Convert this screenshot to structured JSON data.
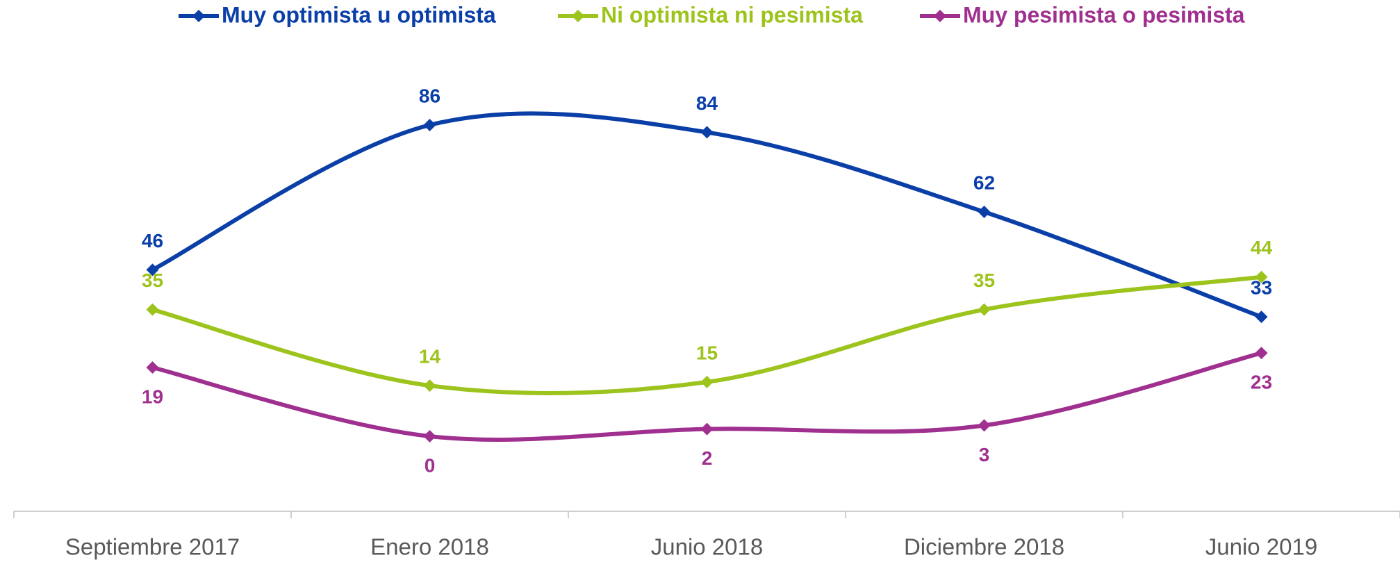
{
  "chart_data": {
    "type": "line",
    "categories": [
      "Septiembre 2017",
      "Enero 2018",
      "Junio 2018",
      "Diciembre 2018",
      "Junio 2019"
    ],
    "series": [
      {
        "name": "Muy optimista u optimista",
        "color": "#0B3FA8",
        "values": [
          46,
          86,
          84,
          62,
          33
        ]
      },
      {
        "name": "Ni optimista ni pesimista",
        "color": "#9DC31D",
        "values": [
          35,
          14,
          15,
          35,
          44
        ]
      },
      {
        "name": "Muy pesimista o pesimista",
        "color": "#A0308F",
        "values": [
          19,
          0,
          2,
          3,
          23
        ]
      }
    ],
    "smooth": true
  }
}
